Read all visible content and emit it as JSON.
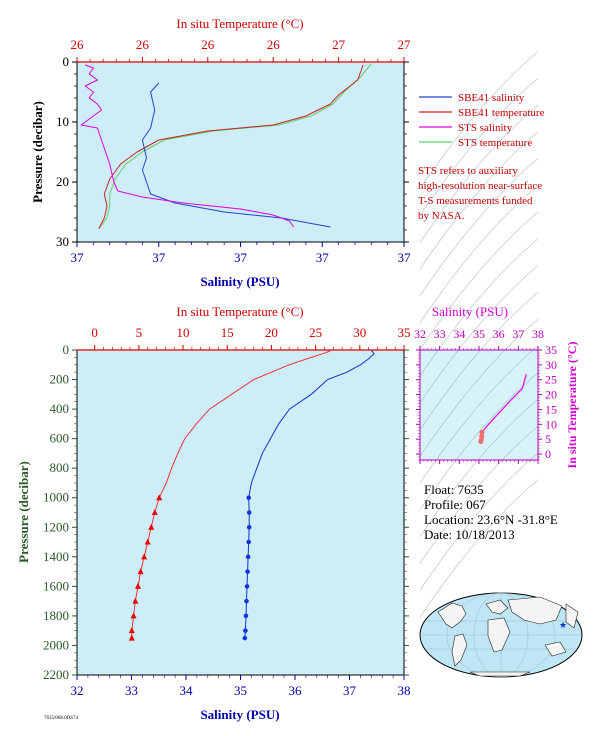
{
  "chart_data": [
    {
      "type": "line",
      "id": "upper",
      "top_axis_label": "In situ Temperature (°C)",
      "top_ticks": [
        "26",
        "26",
        "26",
        "26",
        "27",
        "27"
      ],
      "top_range": [
        25.9,
        27.1
      ],
      "bottom_axis_label": "Salinity (PSU)",
      "bottom_ticks": [
        "37",
        "37",
        "37",
        "37",
        "37"
      ],
      "bottom_range": [
        36.9,
        37.3
      ],
      "ylabel": "Pressure (decibar)",
      "y_ticks": [
        "0",
        "10",
        "20",
        "30"
      ],
      "ylim": [
        0,
        30
      ],
      "series": [
        {
          "name": "SBE41 salinity",
          "color": "#2244cc",
          "axis": "salinity",
          "points": [
            [
              37.0,
              3.5
            ],
            [
              36.99,
              5
            ],
            [
              36.995,
              8
            ],
            [
              36.99,
              11
            ],
            [
              36.98,
              13
            ],
            [
              36.985,
              16
            ],
            [
              36.98,
              18
            ],
            [
              36.985,
              20
            ],
            [
              36.99,
              22
            ],
            [
              37.02,
              23.5
            ],
            [
              37.08,
              25
            ],
            [
              37.15,
              26
            ],
            [
              37.21,
              27.5
            ]
          ]
        },
        {
          "name": "SBE41 temperature",
          "color": "#cc2222",
          "axis": "temperature",
          "points": [
            [
              26.95,
              0.5
            ],
            [
              26.93,
              3
            ],
            [
              26.86,
              5.5
            ],
            [
              26.83,
              7
            ],
            [
              26.74,
              9
            ],
            [
              26.62,
              10.5
            ],
            [
              26.38,
              11.5
            ],
            [
              26.2,
              13
            ],
            [
              26.12,
              15
            ],
            [
              26.06,
              17
            ],
            [
              26.02,
              19.5
            ],
            [
              26.0,
              22
            ],
            [
              26.01,
              24
            ],
            [
              26.0,
              26
            ],
            [
              25.98,
              27.8
            ]
          ]
        },
        {
          "name": "STS salinity",
          "color": "#e000e0",
          "axis": "salinity",
          "points": [
            [
              36.91,
              0.5
            ],
            [
              36.92,
              1
            ],
            [
              36.915,
              2
            ],
            [
              36.925,
              3
            ],
            [
              36.91,
              4
            ],
            [
              36.92,
              5
            ],
            [
              36.915,
              6
            ],
            [
              36.925,
              7
            ],
            [
              36.93,
              8
            ],
            [
              36.92,
              9
            ],
            [
              36.905,
              10.5
            ],
            [
              36.925,
              11
            ],
            [
              36.93,
              13
            ],
            [
              36.935,
              15
            ],
            [
              36.94,
              17
            ],
            [
              36.945,
              20
            ],
            [
              36.95,
              21.5
            ],
            [
              36.98,
              22.5
            ],
            [
              37.03,
              23.5
            ],
            [
              37.1,
              24.5
            ],
            [
              37.14,
              25.5
            ],
            [
              37.16,
              26.5
            ],
            [
              37.165,
              27.5
            ]
          ]
        },
        {
          "name": "STS temperature",
          "color": "#66cc66",
          "axis": "temperature",
          "points": [
            [
              26.98,
              0.3
            ],
            [
              26.94,
              2.5
            ],
            [
              26.88,
              5
            ],
            [
              26.84,
              7
            ],
            [
              26.76,
              9
            ],
            [
              26.64,
              10.5
            ],
            [
              26.4,
              11.5
            ],
            [
              26.22,
              13
            ],
            [
              26.14,
              15
            ],
            [
              26.08,
              17
            ],
            [
              26.04,
              19.5
            ],
            [
              26.02,
              22
            ],
            [
              26.02,
              24
            ],
            [
              26.01,
              26
            ],
            [
              25.98,
              27.8
            ]
          ]
        }
      ],
      "legend": [
        "SBE41 salinity",
        "SBE41 temperature",
        "STS salinity",
        "STS temperature"
      ],
      "annotation": [
        "STS refers to auxiliary",
        "high-resolution near-surface",
        "T-S measurements funded",
        "by NASA."
      ]
    },
    {
      "type": "line",
      "id": "lower",
      "top_axis_label": "In situ Temperature (°C)",
      "top_ticks": [
        "0",
        "5",
        "10",
        "15",
        "20",
        "25",
        "30",
        "35"
      ],
      "top_range": [
        -2,
        35
      ],
      "bottom_axis_label": "Salinity (PSU)",
      "bottom_ticks": [
        "32",
        "33",
        "34",
        "35",
        "36",
        "37",
        "38"
      ],
      "bottom_range": [
        32,
        38
      ],
      "ylabel": "Pressure (decibar)",
      "y_ticks": [
        "0",
        "200",
        "400",
        "600",
        "800",
        "1000",
        "1200",
        "1400",
        "1600",
        "1800",
        "2000",
        "2200"
      ],
      "ylim": [
        0,
        2200
      ],
      "series": [
        {
          "name": "temperature",
          "color": "#ee3333",
          "axis": "temperature",
          "points": [
            [
              26.8,
              0
            ],
            [
              26.5,
              10
            ],
            [
              25.8,
              25
            ],
            [
              24.5,
              50
            ],
            [
              22.0,
              100
            ],
            [
              20.0,
              150
            ],
            [
              18.0,
              200
            ],
            [
              15.5,
              300
            ],
            [
              13.0,
              400
            ],
            [
              11.5,
              500
            ],
            [
              10.2,
              600
            ],
            [
              9.4,
              700
            ],
            [
              8.7,
              800
            ],
            [
              8.1,
              900
            ],
            [
              7.3,
              1000
            ],
            [
              6.8,
              1100
            ],
            [
              6.4,
              1200
            ],
            [
              6.0,
              1300
            ],
            [
              5.6,
              1400
            ],
            [
              5.2,
              1500
            ],
            [
              4.9,
              1600
            ],
            [
              4.6,
              1700
            ],
            [
              4.4,
              1800
            ],
            [
              4.2,
              1900
            ],
            [
              4.2,
              1950
            ]
          ]
        },
        {
          "name": "salinity",
          "color": "#1133cc",
          "axis": "salinity",
          "points": [
            [
              37.4,
              0
            ],
            [
              37.45,
              25
            ],
            [
              37.35,
              60
            ],
            [
              37.2,
              100
            ],
            [
              36.95,
              150
            ],
            [
              36.6,
              200
            ],
            [
              36.3,
              300
            ],
            [
              35.9,
              400
            ],
            [
              35.7,
              500
            ],
            [
              35.55,
              600
            ],
            [
              35.4,
              700
            ],
            [
              35.3,
              800
            ],
            [
              35.2,
              900
            ],
            [
              35.15,
              1000
            ],
            [
              35.16,
              1100
            ],
            [
              35.16,
              1200
            ],
            [
              35.15,
              1300
            ],
            [
              35.14,
              1400
            ],
            [
              35.13,
              1500
            ],
            [
              35.12,
              1600
            ],
            [
              35.11,
              1700
            ],
            [
              35.1,
              1800
            ],
            [
              35.09,
              1900
            ],
            [
              35.08,
              1950
            ]
          ]
        }
      ],
      "temp_markers_from": 1000,
      "sal_markers_from": 1000
    },
    {
      "type": "scatter",
      "id": "ts",
      "top_axis_label": "Salinity (PSU)",
      "top_ticks": [
        "32",
        "33",
        "34",
        "35",
        "36",
        "37",
        "38"
      ],
      "x_range": [
        32,
        38
      ],
      "right_axis_label": "In situ Temperature (°C)",
      "right_ticks": [
        "0",
        "5",
        "10",
        "15",
        "20",
        "25",
        "30",
        "35"
      ],
      "ylim": [
        -2,
        35
      ],
      "points": [
        [
          37.4,
          26.8
        ],
        [
          37.2,
          22
        ],
        [
          36.6,
          18
        ],
        [
          35.9,
          13
        ],
        [
          35.4,
          9.4
        ],
        [
          35.15,
          7.3
        ],
        [
          35.14,
          6
        ],
        [
          35.12,
          4.9
        ],
        [
          35.09,
          4.2
        ]
      ]
    }
  ],
  "float_info": {
    "float": "Float: 7635",
    "profile": "Profile: 067",
    "location": "Location: 23.6°N -31.8°E",
    "date": "Date: 10/18/2013"
  },
  "footer": "7635/068.0DS74"
}
